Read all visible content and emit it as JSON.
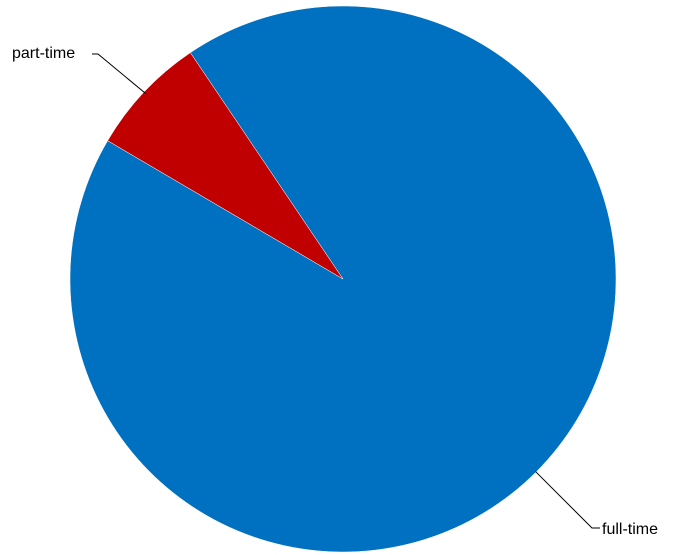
{
  "chart_data": {
    "type": "pie",
    "title": "",
    "slices": [
      {
        "label": "full-time",
        "value": 92.9,
        "color": "#0070C0"
      },
      {
        "label": "part-time",
        "value": 7.1,
        "color": "#C00000"
      }
    ],
    "legend": "none"
  }
}
